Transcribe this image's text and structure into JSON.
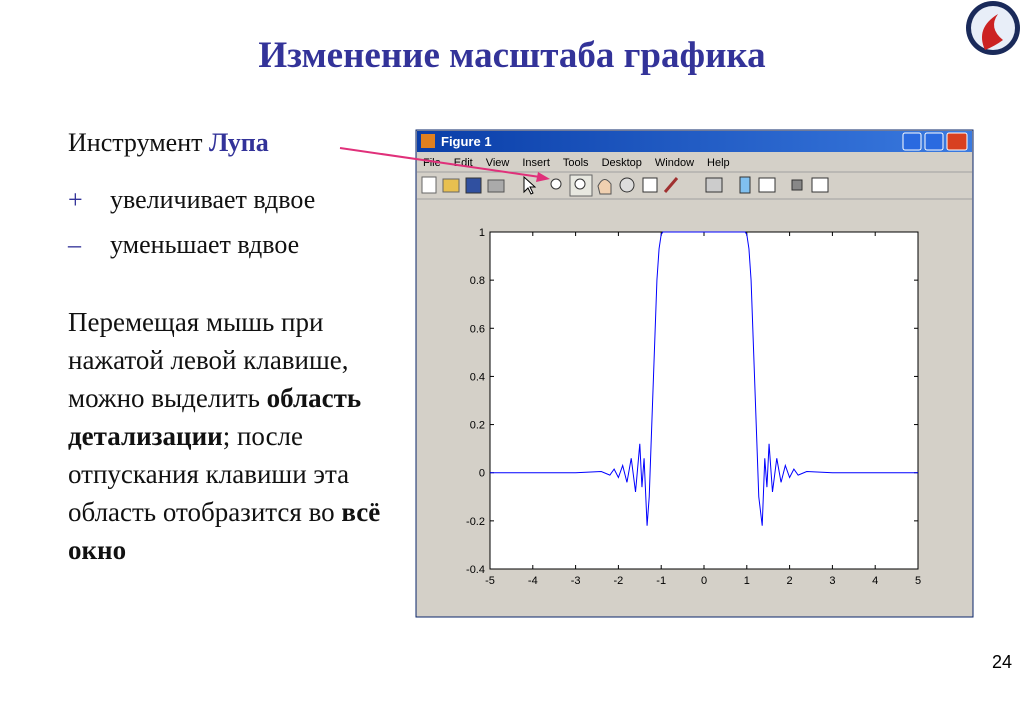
{
  "slide": {
    "title": "Изменение масштаба графика",
    "page_number": "24",
    "tool_line": {
      "text": "Инструмент",
      "tool": "Лупа"
    },
    "items": [
      {
        "sign": "+",
        "text": "увеличивает вдвое"
      },
      {
        "sign": "–",
        "text": "уменьшает вдвое"
      }
    ],
    "paragraph": [
      {
        "text": "Перемещая мышь при нажатой левой клавише, можно выделить",
        "bold": false
      },
      {
        "text": "область детализации",
        "bold": true
      },
      {
        "text": "; после отпускания клавиши эта область отобразится во",
        "bold": false
      },
      {
        "text": "всё окно",
        "bold": true
      }
    ]
  },
  "window": {
    "title": "Figure 1",
    "menu": [
      "File",
      "Edit",
      "View",
      "Insert",
      "Tools",
      "Desktop",
      "Window",
      "Help"
    ]
  },
  "chart_data": {
    "type": "line",
    "color": "#0000ff",
    "x": [
      -5,
      -3,
      -2.4,
      -2.2,
      -2.1,
      -2.0,
      -1.9,
      -1.8,
      -1.7,
      -1.6,
      -1.5,
      -1.45,
      -1.4,
      -1.33,
      -1.28,
      -1.22,
      -1.15,
      -1.1,
      -1.05,
      -1.0,
      -0.96,
      0,
      0.96,
      1.0,
      1.05,
      1.1,
      1.15,
      1.22,
      1.28,
      1.36,
      1.42,
      1.47,
      1.52,
      1.6,
      1.7,
      1.8,
      1.9,
      2.0,
      2.1,
      2.2,
      2.4,
      3,
      5
    ],
    "values": [
      0,
      0,
      0.005,
      -0.01,
      0.015,
      -0.02,
      0.03,
      -0.04,
      0.06,
      -0.08,
      0.12,
      -0.06,
      0.06,
      -0.22,
      -0.1,
      0.2,
      0.55,
      0.8,
      0.93,
      0.99,
      1,
      1,
      1,
      0.99,
      0.93,
      0.8,
      0.55,
      0.2,
      -0.1,
      -0.22,
      0.06,
      -0.06,
      0.12,
      -0.08,
      0.06,
      -0.04,
      0.03,
      -0.02,
      0.015,
      -0.01,
      0.005,
      0,
      0
    ],
    "xlim": [
      -5,
      5
    ],
    "xticks": [
      -5,
      -4,
      -3,
      -2,
      -1,
      0,
      1,
      2,
      3,
      4,
      5
    ],
    "ylim": [
      -0.4,
      1
    ],
    "yticks": [
      -0.4,
      -0.2,
      0,
      0.2,
      0.4,
      0.6,
      0.8,
      1
    ]
  }
}
